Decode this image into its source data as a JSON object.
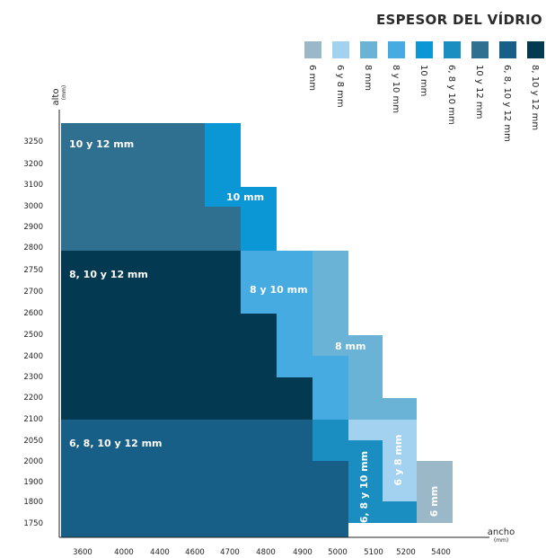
{
  "chart_data": {
    "type": "area",
    "title": "ESPESOR DEL VÍDRIO",
    "xlabel": "ancho",
    "xlabel_unit": "(mm)",
    "ylabel": "alto",
    "ylabel_unit": "(mm)",
    "x_ticks": [
      "3600",
      "4000",
      "4400",
      "4600",
      "4700",
      "4800",
      "4900",
      "5000",
      "5100",
      "5200",
      "5400"
    ],
    "y_ticks": [
      "1750",
      "1800",
      "1900",
      "2000",
      "2050",
      "2100",
      "2200",
      "2300",
      "2400",
      "2500",
      "2600",
      "2700",
      "2750",
      "2800",
      "2900",
      "3000",
      "3100",
      "3200",
      "3250"
    ],
    "legend": [
      {
        "label": "6 mm",
        "color": "#9bb8c8"
      },
      {
        "label": "6 y 8 mm",
        "color": "#a3d2f1"
      },
      {
        "label": "8 mm",
        "color": "#6bb3d6"
      },
      {
        "label": "8 y 10 mm",
        "color": "#45abe0"
      },
      {
        "label": "10 mm",
        "color": "#0b96d6"
      },
      {
        "label": "6, 8 y 10 mm",
        "color": "#1a8ec0"
      },
      {
        "label": "10 y 12 mm",
        "color": "#2f7090"
      },
      {
        "label": "6, 8, 10 y 12 mm",
        "color": "#175f86"
      },
      {
        "label": "8, 10 y 12 mm",
        "color": "#033a52"
      }
    ],
    "regions": [
      {
        "name": "10 y 12 mm",
        "color": "#2f7090",
        "label": "10 y 12 mm",
        "outline": [
          [
            3600,
            2800
          ],
          [
            3600,
            3250
          ],
          [
            4600,
            3250
          ],
          [
            4600,
            3000
          ],
          [
            4700,
            3000
          ],
          [
            4700,
            2800
          ]
        ]
      },
      {
        "name": "10 mm",
        "color": "#0b96d6",
        "label": "10 mm",
        "outline": [
          [
            4600,
            3000
          ],
          [
            4600,
            3250
          ],
          [
            4700,
            3250
          ],
          [
            4700,
            3100
          ],
          [
            4800,
            3100
          ],
          [
            4800,
            2800
          ],
          [
            4700,
            2800
          ],
          [
            4700,
            3000
          ]
        ]
      },
      {
        "name": "8, 10 y 12 mm",
        "color": "#033a52",
        "label": "8, 10 y 12 mm",
        "outline": [
          [
            3600,
            2100
          ],
          [
            3600,
            2800
          ],
          [
            4700,
            2800
          ],
          [
            4700,
            2600
          ],
          [
            4800,
            2600
          ],
          [
            4800,
            2300
          ],
          [
            4900,
            2300
          ],
          [
            4900,
            2100
          ]
        ]
      },
      {
        "name": "8 y 10 mm",
        "color": "#45abe0",
        "label": "8 y 10 mm",
        "outline": [
          [
            4700,
            2600
          ],
          [
            4700,
            2800
          ],
          [
            4900,
            2800
          ],
          [
            4900,
            2400
          ],
          [
            5000,
            2400
          ],
          [
            5000,
            2100
          ],
          [
            4900,
            2100
          ],
          [
            4900,
            2300
          ],
          [
            4800,
            2300
          ],
          [
            4800,
            2600
          ]
        ]
      },
      {
        "name": "8 mm",
        "color": "#6bb3d6",
        "label": "8 mm",
        "outline": [
          [
            4900,
            2400
          ],
          [
            4900,
            2800
          ],
          [
            5000,
            2800
          ],
          [
            5000,
            2500
          ],
          [
            5100,
            2500
          ],
          [
            5100,
            2200
          ],
          [
            5200,
            2200
          ],
          [
            5200,
            2100
          ],
          [
            5000,
            2100
          ],
          [
            5000,
            2400
          ]
        ]
      },
      {
        "name": "6, 8, 10 y 12 mm",
        "color": "#175f86",
        "label": "6, 8, 10 y 12 mm",
        "outline": [
          [
            3600,
            1700
          ],
          [
            3600,
            2100
          ],
          [
            4900,
            2100
          ],
          [
            4900,
            2000
          ],
          [
            5000,
            2000
          ],
          [
            5000,
            1700
          ]
        ]
      },
      {
        "name": "6, 8 y 10 mm",
        "color": "#1a8ec0",
        "label": "6, 8 y 10 mm",
        "outline": [
          [
            4900,
            2000
          ],
          [
            4900,
            2100
          ],
          [
            5000,
            2100
          ],
          [
            5000,
            2050
          ],
          [
            5100,
            2050
          ],
          [
            5100,
            1800
          ],
          [
            5200,
            1800
          ],
          [
            5200,
            1750
          ],
          [
            5000,
            1750
          ],
          [
            5000,
            2000
          ]
        ]
      },
      {
        "name": "6 y 8 mm",
        "color": "#a3d2f1",
        "label": "6 y 8 mm",
        "outline": [
          [
            5000,
            2050
          ],
          [
            5000,
            2100
          ],
          [
            5200,
            2100
          ],
          [
            5200,
            2000
          ],
          [
            5200,
            1750
          ],
          [
            5200,
            1800
          ],
          [
            5100,
            1800
          ],
          [
            5100,
            2050
          ]
        ]
      },
      {
        "name": "6 mm",
        "color": "#9bb8c8",
        "label": "6 mm",
        "outline": [
          [
            5200,
            1750
          ],
          [
            5200,
            2000
          ],
          [
            5400,
            2000
          ],
          [
            5400,
            1750
          ]
        ]
      }
    ]
  }
}
